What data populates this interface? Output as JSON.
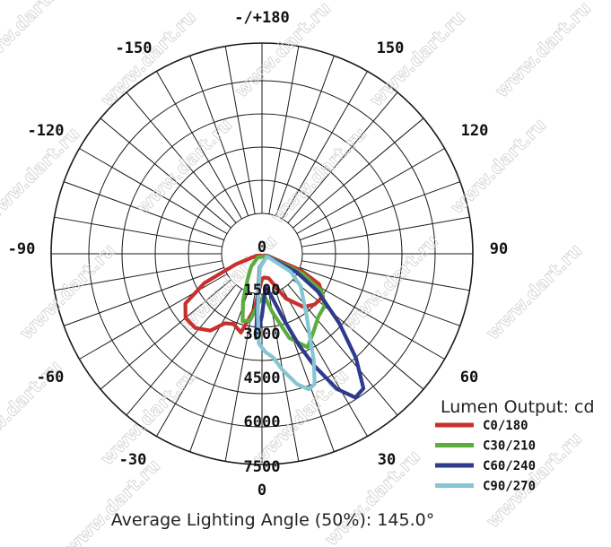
{
  "chart_data": {
    "type": "polar",
    "unit_label": "Lumen Output: cd",
    "angle_labels": [
      "-/+180",
      "150",
      "120",
      "90",
      "60",
      "30",
      "0",
      "-30",
      "-60",
      "-90",
      "-120",
      "-150"
    ],
    "radial_ticks": [
      "0",
      "1500",
      "3000",
      "4500",
      "6000",
      "7500"
    ],
    "rmax": 7500,
    "caption": "Average Lighting Angle (50%): 145.0°",
    "watermark": "www.dart.ru",
    "series": [
      {
        "name": "C0/180",
        "color": "#c8302c",
        "points": [
          [
            -70,
            200
          ],
          [
            -67,
            1500
          ],
          [
            -62,
            2300
          ],
          [
            -55,
            2650
          ],
          [
            -46,
            2600
          ],
          [
            -38,
            2400
          ],
          [
            -28,
            1800
          ],
          [
            -15,
            900
          ],
          [
            -5,
            850
          ],
          [
            0,
            900
          ],
          [
            8,
            2000
          ],
          [
            15,
            2900
          ],
          [
            22,
            2700
          ],
          [
            28,
            2800
          ],
          [
            34,
            3300
          ],
          [
            42,
            3550
          ],
          [
            50,
            3550
          ],
          [
            57,
            3250
          ],
          [
            63,
            2300
          ],
          [
            68,
            1000
          ],
          [
            70,
            200
          ]
        ]
      },
      {
        "name": "C30/210",
        "color": "#5aad3e",
        "points": [
          [
            -68,
            200
          ],
          [
            -64,
            1600
          ],
          [
            -58,
            2500
          ],
          [
            -50,
            2900
          ],
          [
            -42,
            3000
          ],
          [
            -34,
            3300
          ],
          [
            -26,
            3700
          ],
          [
            -18,
            3150
          ],
          [
            -10,
            2100
          ],
          [
            -3,
            1500
          ],
          [
            3,
            1700
          ],
          [
            10,
            2400
          ],
          [
            16,
            2500
          ],
          [
            22,
            1800
          ],
          [
            30,
            1000
          ],
          [
            40,
            600
          ],
          [
            50,
            200
          ]
        ]
      },
      {
        "name": "C60/240",
        "color": "#2e3a8e",
        "points": [
          [
            -66,
            200
          ],
          [
            -62,
            1400
          ],
          [
            -56,
            2400
          ],
          [
            -48,
            3700
          ],
          [
            -42,
            5000
          ],
          [
            -37,
            6000
          ],
          [
            -33,
            6100
          ],
          [
            -29,
            5500
          ],
          [
            -25,
            4400
          ],
          [
            -22,
            3500
          ],
          [
            -18,
            2400
          ],
          [
            -12,
            1500
          ],
          [
            -6,
            1200
          ],
          [
            0,
            2200
          ],
          [
            2,
            2600
          ],
          [
            4,
            3000
          ],
          [
            5,
            2000
          ],
          [
            6,
            1200
          ],
          [
            10,
            500
          ]
        ]
      },
      {
        "name": "C90/270",
        "color": "#86c5d2",
        "points": [
          [
            -62,
            200
          ],
          [
            -58,
            1200
          ],
          [
            -50,
            1800
          ],
          [
            -42,
            2200
          ],
          [
            -36,
            2700
          ],
          [
            -30,
            3400
          ],
          [
            -26,
            4200
          ],
          [
            -22,
            5000
          ],
          [
            -19,
            5100
          ],
          [
            -15,
            4800
          ],
          [
            -10,
            4200
          ],
          [
            -6,
            3700
          ],
          [
            -2,
            3500
          ],
          [
            2,
            3200
          ],
          [
            4,
            2100
          ],
          [
            5,
            1500
          ],
          [
            8,
            500
          ]
        ]
      }
    ]
  }
}
